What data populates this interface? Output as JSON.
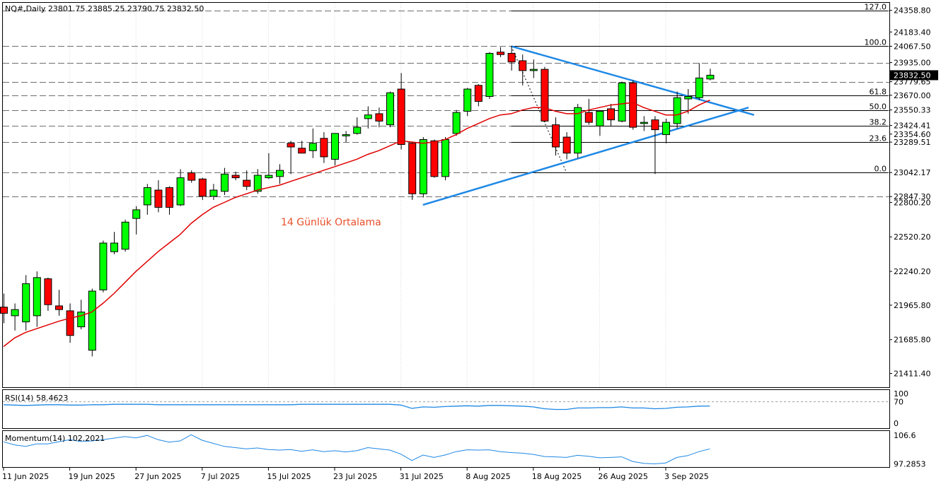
{
  "header": {
    "symbol_info": "NQ#,Daily  23801.75 23885.25 23790.75 23832.50"
  },
  "annotation": "14 Günlük Ortalama",
  "colors": {
    "bull": "#00ff00",
    "bear": "#ff0000",
    "ma": "#e00000",
    "trendline": "#1e88e5",
    "indicator": "#1e88e5"
  },
  "chart_data": {
    "type": "candlestick",
    "ylim": [
      21300,
      24420
    ],
    "price_ticks": [
      "24358.80",
      "24183.40",
      "24067.50",
      "23935.00",
      "23832.50",
      "23779.65",
      "23670.00",
      "23550.33",
      "23424.41",
      "23354.60",
      "23289.51",
      "23042.17",
      "22847.30",
      "22800.20",
      "22520.20",
      "22240.20",
      "21965.80",
      "21685.80",
      "21411.40"
    ],
    "current_price": 23832.5,
    "x_labels": [
      "11 Jun 2025",
      "19 Jun 2025",
      "27 Jun 2025",
      "7 Jul 2025",
      "15 Jul 2025",
      "23 Jul 2025",
      "31 Jul 2025",
      "8 Aug 2025",
      "18 Aug 2025",
      "26 Aug 2025",
      "3 Sep 2025"
    ],
    "candles": [
      [
        21950,
        22060,
        21820,
        21900
      ],
      [
        21880,
        21980,
        21760,
        21930
      ],
      [
        21830,
        22210,
        21760,
        22140
      ],
      [
        21880,
        22240,
        21790,
        22190
      ],
      [
        22180,
        22190,
        21920,
        21970
      ],
      [
        21960,
        22090,
        21880,
        21930
      ],
      [
        21920,
        21980,
        21660,
        21720
      ],
      [
        21790,
        22010,
        21770,
        21910
      ],
      [
        21600,
        22100,
        21550,
        22080
      ],
      [
        22090,
        22490,
        22070,
        22470
      ],
      [
        22400,
        22560,
        22380,
        22470
      ],
      [
        22420,
        22660,
        22400,
        22640
      ],
      [
        22670,
        22770,
        22540,
        22740
      ],
      [
        22780,
        22950,
        22700,
        22920
      ],
      [
        22900,
        22980,
        22720,
        22760
      ],
      [
        22920,
        22930,
        22700,
        22760
      ],
      [
        22780,
        23070,
        22770,
        23000
      ],
      [
        23040,
        23060,
        22960,
        22980
      ],
      [
        22990,
        23000,
        22820,
        22850
      ],
      [
        22850,
        22950,
        22820,
        22900
      ],
      [
        22890,
        23080,
        22860,
        23030
      ],
      [
        23020,
        23050,
        22980,
        23000
      ],
      [
        22980,
        23060,
        22900,
        22930
      ],
      [
        22890,
        23070,
        22870,
        23020
      ],
      [
        23000,
        23200,
        22990,
        23020
      ],
      [
        23010,
        23110,
        22950,
        23060
      ],
      [
        23280,
        23300,
        23030,
        23250
      ],
      [
        23240,
        23300,
        23200,
        23200
      ],
      [
        23220,
        23400,
        23160,
        23280
      ],
      [
        23320,
        23370,
        23120,
        23170
      ],
      [
        23150,
        23360,
        23100,
        23360
      ],
      [
        23340,
        23380,
        23290,
        23350
      ],
      [
        23360,
        23490,
        23350,
        23410
      ],
      [
        23480,
        23580,
        23400,
        23510
      ],
      [
        23520,
        23570,
        23410,
        23460
      ],
      [
        23430,
        23700,
        23410,
        23690
      ],
      [
        23720,
        23850,
        23230,
        23270
      ],
      [
        23280,
        23290,
        22820,
        22870
      ],
      [
        22870,
        23330,
        22840,
        23310
      ],
      [
        23300,
        23310,
        23000,
        23010
      ],
      [
        23010,
        23330,
        22980,
        23310
      ],
      [
        23360,
        23550,
        23340,
        23530
      ],
      [
        23540,
        23730,
        23500,
        23720
      ],
      [
        23750,
        23760,
        23580,
        23620
      ],
      [
        23660,
        24020,
        23640,
        24010
      ],
      [
        24020,
        24060,
        23980,
        24000
      ],
      [
        24010,
        24070,
        23870,
        23940
      ],
      [
        23950,
        24000,
        23750,
        23870
      ],
      [
        23870,
        23960,
        23810,
        23880
      ],
      [
        23880,
        23900,
        23450,
        23460
      ],
      [
        23430,
        23490,
        23180,
        23250
      ],
      [
        23330,
        23370,
        23150,
        23200
      ],
      [
        23200,
        23600,
        23160,
        23570
      ],
      [
        23530,
        23640,
        23430,
        23450
      ],
      [
        23420,
        23540,
        23340,
        23540
      ],
      [
        23560,
        23600,
        23420,
        23470
      ],
      [
        23460,
        23780,
        23450,
        23770
      ],
      [
        23770,
        23790,
        23390,
        23410
      ],
      [
        23440,
        23500,
        23380,
        23450
      ],
      [
        23470,
        23500,
        23030,
        23390
      ],
      [
        23350,
        23480,
        23280,
        23450
      ],
      [
        23440,
        23700,
        23400,
        23650
      ],
      [
        23640,
        23720,
        23520,
        23660
      ],
      [
        23650,
        23930,
        23630,
        23810
      ],
      [
        23801.75,
        23885.25,
        23790.75,
        23832.5
      ]
    ],
    "ma14": [
      21630,
      21700,
      21745,
      21775,
      21805,
      21835,
      21860,
      21880,
      21910,
      21980,
      22060,
      22150,
      22240,
      22320,
      22400,
      22470,
      22540,
      22630,
      22700,
      22760,
      22800,
      22840,
      22870,
      22900,
      22920,
      22940,
      22970,
      23000,
      23030,
      23060,
      23090,
      23120,
      23150,
      23190,
      23220,
      23260,
      23300,
      23290,
      23280,
      23290,
      23310,
      23350,
      23400,
      23440,
      23480,
      23510,
      23520,
      23550,
      23570,
      23570,
      23540,
      23520,
      23520,
      23550,
      23570,
      23590,
      23600,
      23610,
      23570,
      23540,
      23510,
      23510,
      23540,
      23590,
      23630
    ],
    "fibonacci": [
      {
        "level": "127.0",
        "price": 24358.8
      },
      {
        "level": "100.0",
        "price": 24067.5
      },
      {
        "level": "61.8",
        "price": 23670.0
      },
      {
        "level": "50.0",
        "price": 23550.33
      },
      {
        "level": "38.2",
        "price": 23424.41
      },
      {
        "level": "23.6",
        "price": 23289.51
      },
      {
        "level": "0.0",
        "price": 23042.17
      }
    ],
    "support_resistance": [
      24358.8,
      24067.5,
      23935.0,
      23779.65,
      23670.0,
      23550.33,
      23424.41,
      23289.51,
      23042.17,
      22847.3
    ],
    "rsi": {
      "label": "RSI(14) 58.4623",
      "ylim": [
        0,
        100
      ],
      "ticks": [
        "100",
        "70",
        "0"
      ],
      "values": [
        62,
        61,
        60,
        61,
        62,
        62,
        61,
        61,
        62,
        62,
        63,
        63,
        63,
        63,
        62,
        62,
        62,
        62,
        62,
        62,
        62,
        62,
        62,
        62,
        62,
        62,
        62,
        63,
        63,
        63,
        63,
        63,
        63,
        63,
        63,
        63,
        61,
        52,
        56,
        55,
        57,
        58,
        59,
        58,
        60,
        60,
        59,
        58,
        56,
        51,
        49,
        49,
        53,
        53,
        54,
        54,
        56,
        53,
        53,
        51,
        52,
        55,
        56,
        58,
        58.46
      ]
    },
    "momentum": {
      "label": "Momentum(14) 102.2021",
      "ticks": [
        "106.6",
        "97.2853"
      ],
      "ylim": [
        96.5,
        107.8
      ],
      "values": [
        104.5,
        103.5,
        103.0,
        103.8,
        103.8,
        104.5,
        105.2,
        104.6,
        104.8,
        105.2,
        105.7,
        106.2,
        105.8,
        106.6,
        105.2,
        104.4,
        104.8,
        106.8,
        105.0,
        104.0,
        103.0,
        102.6,
        102.2,
        102.5,
        102.0,
        101.8,
        102.0,
        101.4,
        101.9,
        101.3,
        101.6,
        101.2,
        101.6,
        102.6,
        102.2,
        101.8,
        100.5,
        98.4,
        100.2,
        99.4,
        100.2,
        101.3,
        101.9,
        101.8,
        101.9,
        101.3,
        101.0,
        100.8,
        100.4,
        99.7,
        99.6,
        99.4,
        100.1,
        99.8,
        99.3,
        99.4,
        99.6,
        98.1,
        97.5,
        97.3,
        97.6,
        99.4,
        100.0,
        101.3,
        102.2
      ]
    }
  }
}
